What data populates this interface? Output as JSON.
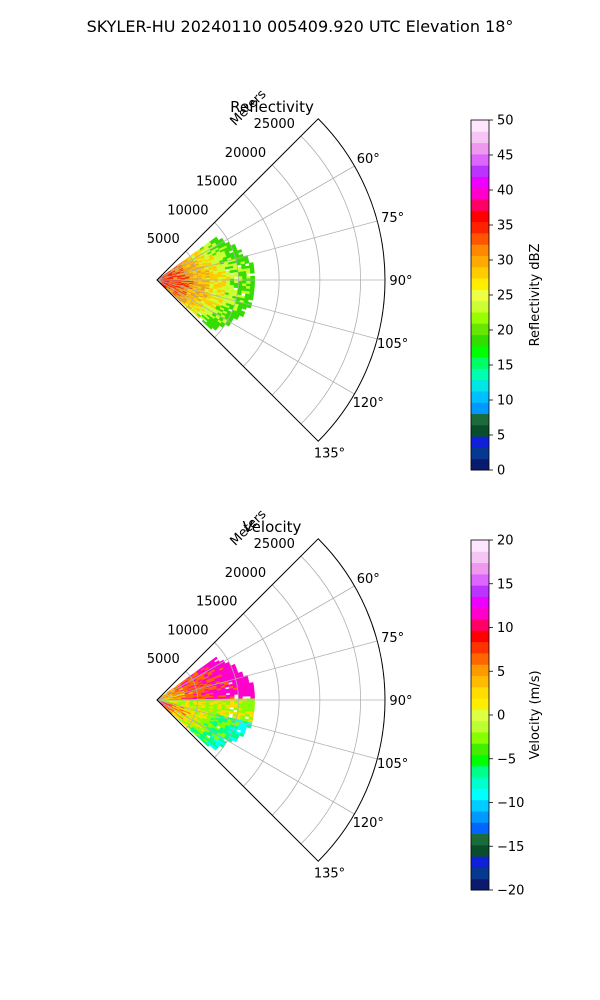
{
  "suptitle": "SKYLER-HU  20240110  005409.920 UTC Elevation 18°",
  "chart_data": [
    {
      "type": "polar-sector",
      "title": "Reflectivity",
      "radial_label": "Meters",
      "r_ticks": [
        "5000",
        "10000",
        "15000",
        "20000",
        "25000"
      ],
      "r_max": 28000,
      "theta_range_deg": [
        45,
        135
      ],
      "theta_ticks": [
        "60°",
        "75°",
        "90°",
        "105°",
        "120°",
        "135°"
      ],
      "grid": true,
      "colorbar": {
        "label": "Reflectivity dBZ",
        "min": 0,
        "max": 50,
        "ticks": [
          "0",
          "5",
          "10",
          "15",
          "20",
          "25",
          "30",
          "35",
          "40",
          "45",
          "50"
        ],
        "colors": [
          "#0a1a6e",
          "#06388f",
          "#1020d8",
          "#0a4d2d",
          "#1c6b3a",
          "#0099ff",
          "#00bfff",
          "#00e5e5",
          "#00ffb0",
          "#00ff66",
          "#00ff00",
          "#33dd00",
          "#66e600",
          "#99ff00",
          "#ccff33",
          "#eeff44",
          "#ffee00",
          "#ffcc00",
          "#ffaa00",
          "#ff8800",
          "#ff5500",
          "#ff2200",
          "#ff0000",
          "#ff0066",
          "#ff00cc",
          "#ee00ff",
          "#bb33ff",
          "#dd66ff",
          "#ee99ee",
          "#f5c6f5",
          "#ffe6ff"
        ]
      },
      "echo_field": {
        "dominant_colors": [
          "#ff2200",
          "#e6a028",
          "#ffcc00",
          "#ccff33",
          "#33dd00"
        ],
        "max_range_m": 12000,
        "azimuth_extent_deg": [
          54,
          132
        ]
      }
    },
    {
      "type": "polar-sector",
      "title": "Velocity",
      "radial_label": "Meters",
      "r_ticks": [
        "5000",
        "10000",
        "15000",
        "20000",
        "25000"
      ],
      "r_max": 28000,
      "theta_range_deg": [
        45,
        135
      ],
      "theta_ticks": [
        "60°",
        "75°",
        "90°",
        "105°",
        "120°",
        "135°"
      ],
      "grid": true,
      "colorbar": {
        "label": "Velocity (m/s)",
        "min": -20,
        "max": 20,
        "ticks": [
          "−20",
          "−15",
          "−10",
          "−5",
          "0",
          "5",
          "10",
          "15",
          "20"
        ],
        "colors": [
          "#0a1a6e",
          "#06388f",
          "#1020d8",
          "#0a4d2d",
          "#1c6b3a",
          "#0066ff",
          "#0099ff",
          "#00ccff",
          "#00ffff",
          "#00ffcc",
          "#00ff88",
          "#00ff00",
          "#44ee00",
          "#88ff00",
          "#bbff33",
          "#ddff44",
          "#ffee00",
          "#ffdd00",
          "#ffbb00",
          "#ff9900",
          "#ff6600",
          "#ff3300",
          "#ff0000",
          "#ff0066",
          "#ff00cc",
          "#ee00ff",
          "#bb33ff",
          "#dd66ff",
          "#ee99ee",
          "#f5c6f5",
          "#ffe6ff"
        ]
      },
      "echo_field": {
        "dominant_colors": [
          "#ff00cc",
          "#ff6600",
          "#ffdd00",
          "#88ff00",
          "#00ff88",
          "#00ffff"
        ],
        "max_range_m": 12000,
        "azimuth_extent_deg": [
          54,
          132
        ]
      }
    }
  ]
}
